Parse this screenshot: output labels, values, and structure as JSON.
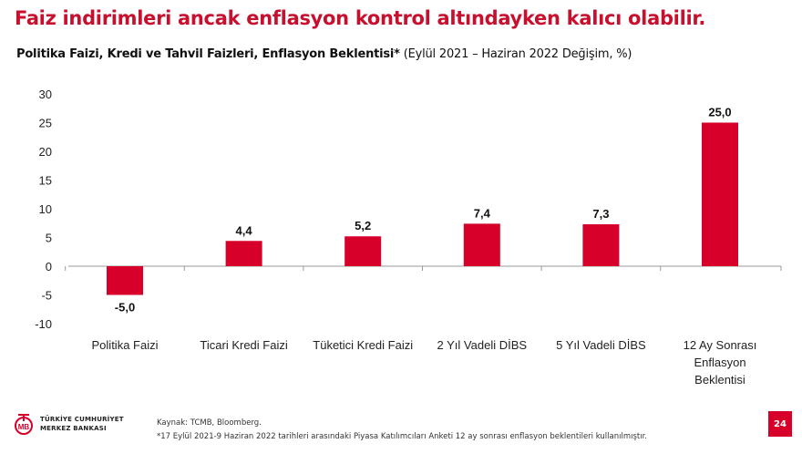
{
  "slide": {
    "title": "Faiz indirimleri ancak enflasyon kontrol altındayken kalıcı olabilir.",
    "subtitle_bold": "Politika Faizi, Kredi ve Tahvil Faizleri, Enflasyon Beklentisi*",
    "subtitle_regular": " (Eylül 2021 – Haziran 2022 Değişim, %)",
    "source": "Kaynak: TCMB, Bloomberg.",
    "footnote": "*17 Eylül 2021-9 Haziran 2022 tarihleri arasındaki Piyasa Katılımcıları Anketi 12 ay sonrası enflasyon beklentileri kullanılmıştır.",
    "logo_line1": "TÜRKİYE CUMHURİYET",
    "logo_line2": "MERKEZ BANKASI",
    "logo_mark": "TCMB",
    "page_number": "24",
    "accent_color": "#d6002a",
    "title_color": "#c8102e"
  },
  "chart_data": {
    "type": "bar",
    "title": "Politika Faizi, Kredi ve Tahvil Faizleri, Enflasyon Beklentisi* (Eylül 2021 – Haziran 2022 Değişim, %)",
    "categories": [
      "Politika Faizi",
      "Ticari Kredi Faizi",
      "Tüketici Kredi Faizi",
      "2 Yıl Vadeli DİBS",
      "5 Yıl Vadeli DİBS",
      "12 Ay Sonrası Enflasyon Beklentisi"
    ],
    "values": [
      -5.0,
      4.4,
      5.2,
      7.4,
      7.3,
      25.0
    ],
    "data_labels": [
      "-5,0",
      "4,4",
      "5,2",
      "7,4",
      "7,3",
      "25,0"
    ],
    "yticks": [
      "-10",
      "-5",
      "0",
      "5",
      "10",
      "15",
      "20",
      "25",
      "30"
    ],
    "ylim": [
      -10,
      30
    ],
    "grid": false,
    "bar_color": "#d6002a"
  }
}
